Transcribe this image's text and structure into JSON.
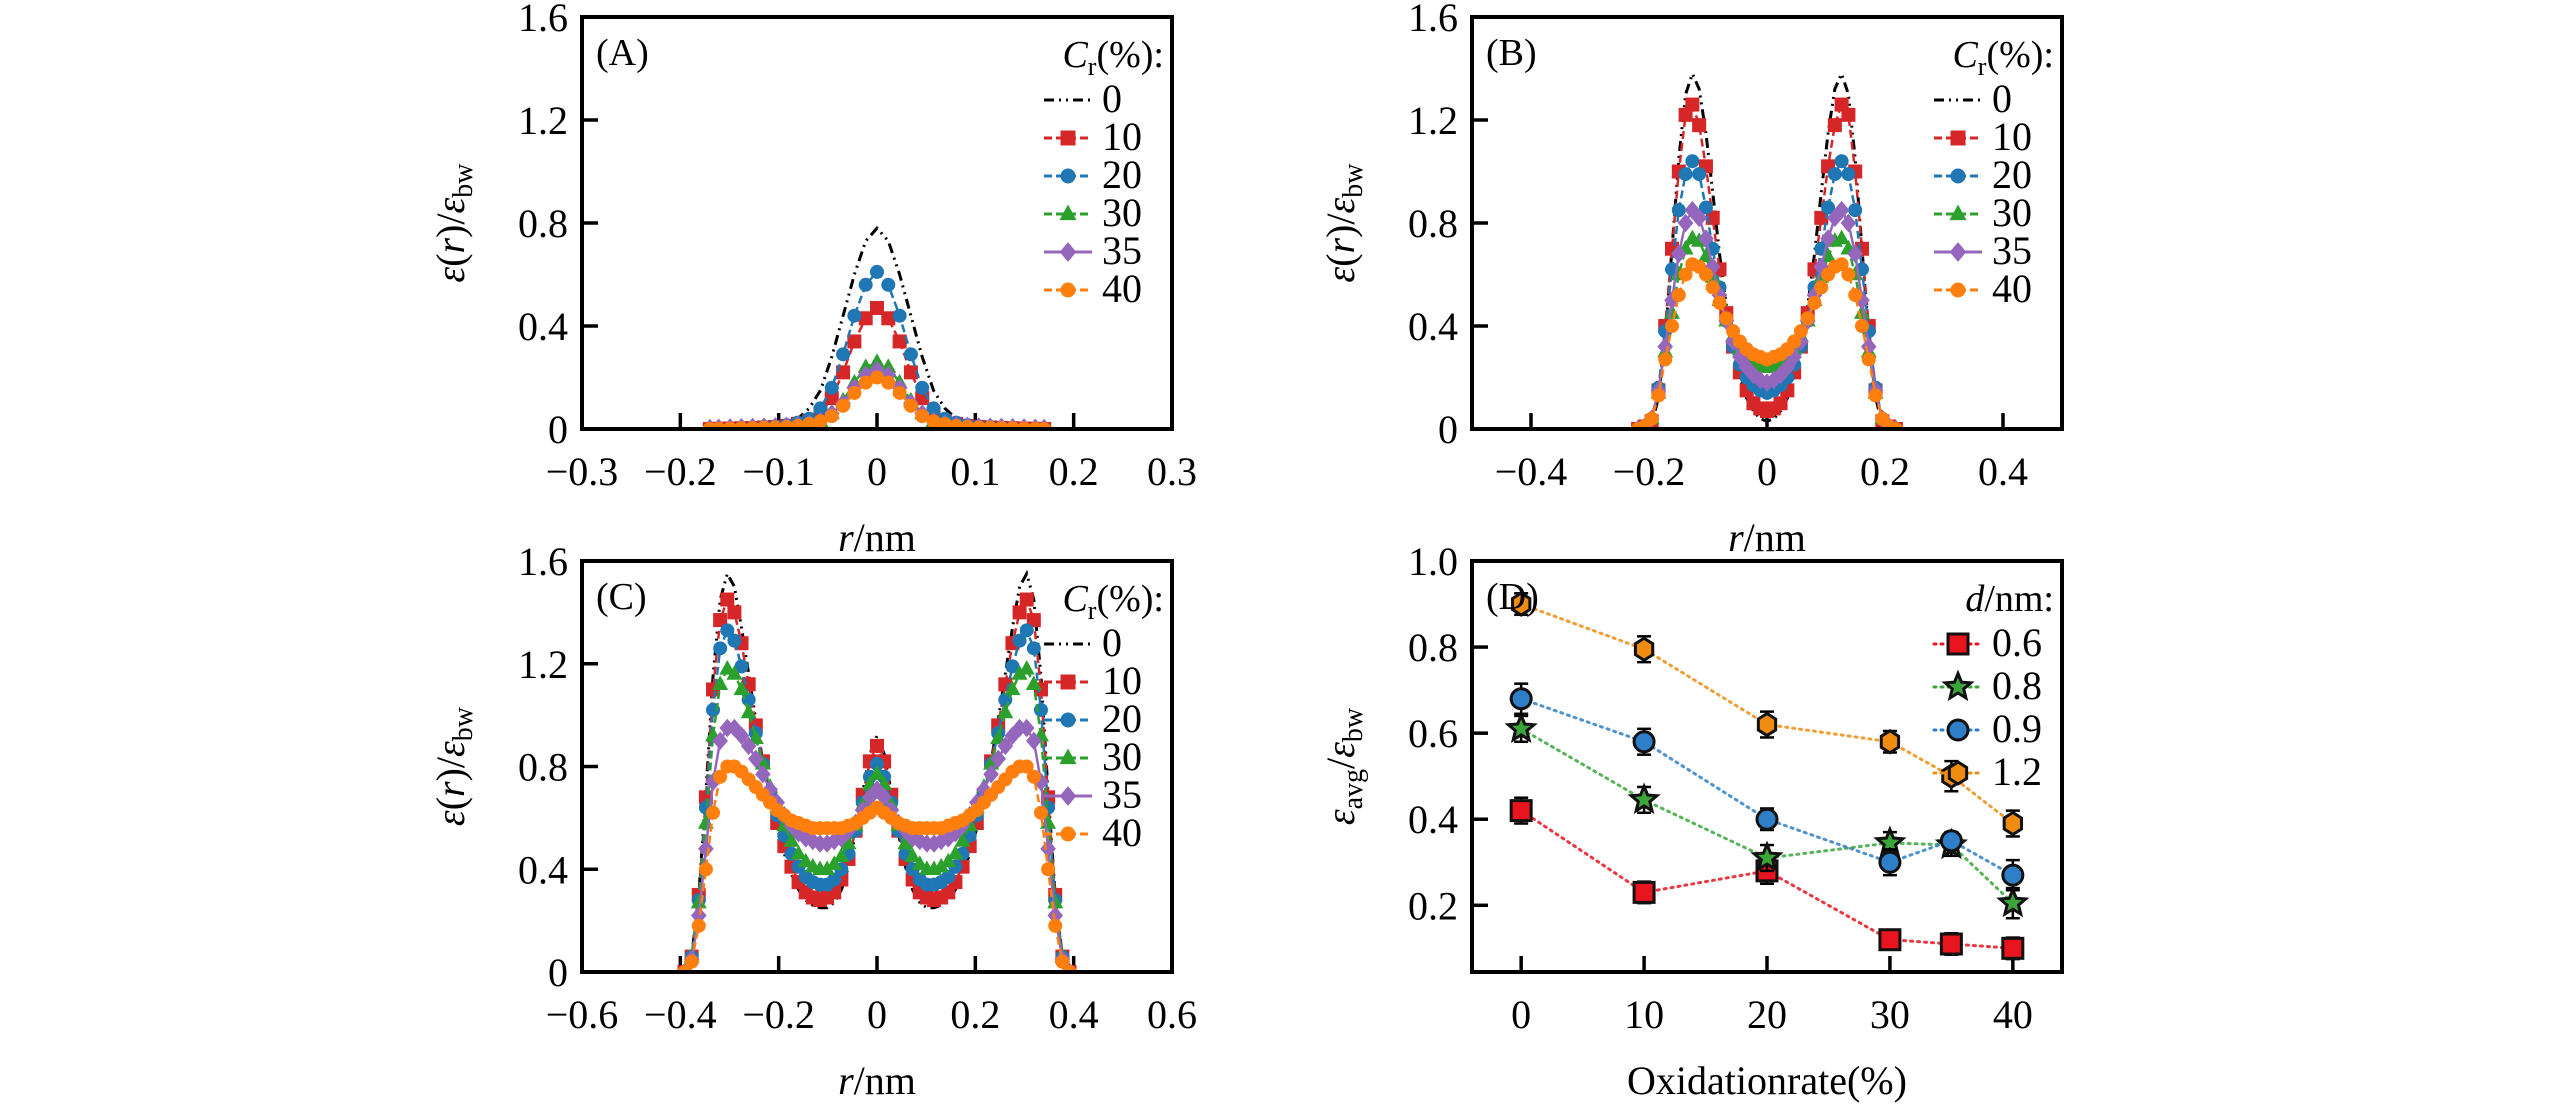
{
  "chart_data": [
    {
      "id": "A",
      "type": "line",
      "panel_label": "(A)",
      "xlabel": "r/nm",
      "ylabel": "ε(r)/ε_bw",
      "xlim": [
        -0.3,
        0.3
      ],
      "ylim": [
        0,
        1.6
      ],
      "xticks": [
        -0.3,
        -0.2,
        -0.1,
        0,
        0.1,
        0.2,
        0.3
      ],
      "xtick_labels": [
        "−0.3",
        "−0.2",
        "−0.1",
        "0",
        "0.1",
        "0.2",
        "0.3"
      ],
      "yticks": [
        0,
        0.4,
        0.8,
        1.2,
        1.6
      ],
      "ytick_labels": [
        "0",
        "0.4",
        "0.8",
        "1.2",
        "1.6"
      ],
      "legend_title": "Cr(%):",
      "legend_position": "top-right",
      "symmetric": true,
      "r_half": [
        0,
        0.0115,
        0.023,
        0.0345,
        0.046,
        0.0575,
        0.069,
        0.0805,
        0.092,
        0.1035,
        0.115,
        0.1265,
        0.138,
        0.1495,
        0.161,
        0.17
      ],
      "series": [
        {
          "name": "0",
          "color": "#000000",
          "marker": "none",
          "dash": "dashdotdot",
          "values": [
            0.78,
            0.73,
            0.6,
            0.44,
            0.28,
            0.15,
            0.08,
            0.04,
            0.02,
            0.012,
            0.008,
            0.005,
            0.003,
            0.002,
            0.001,
            0
          ]
        },
        {
          "name": "10",
          "color": "#d62728",
          "marker": "square",
          "dash": "dashed",
          "values": [
            0.47,
            0.43,
            0.34,
            0.22,
            0.12,
            0.06,
            0.03,
            0.02,
            0.012,
            0.008,
            0.006,
            0.004,
            0.003,
            0.002,
            0.001,
            0
          ]
        },
        {
          "name": "20",
          "color": "#1f77b4",
          "marker": "circle",
          "dash": "dashed",
          "values": [
            0.61,
            0.56,
            0.44,
            0.29,
            0.16,
            0.08,
            0.04,
            0.025,
            0.015,
            0.01,
            0.008,
            0.006,
            0.004,
            0.002,
            0.001,
            0
          ]
        },
        {
          "name": "30",
          "color": "#2ca02c",
          "marker": "triangle",
          "dash": "dashed",
          "values": [
            0.26,
            0.24,
            0.18,
            0.11,
            0.06,
            0.03,
            0.02,
            0.012,
            0.01,
            0.008,
            0.006,
            0.005,
            0.004,
            0.003,
            0.002,
            0.001
          ]
        },
        {
          "name": "35",
          "color": "#9467bd",
          "marker": "diamond",
          "dash": "solid",
          "values": [
            0.23,
            0.21,
            0.16,
            0.1,
            0.06,
            0.03,
            0.02,
            0.015,
            0.012,
            0.01,
            0.009,
            0.008,
            0.007,
            0.006,
            0.005,
            0.004
          ]
        },
        {
          "name": "40",
          "color": "#ff7f0e",
          "marker": "circle",
          "dash": "dashed",
          "values": [
            0.2,
            0.18,
            0.14,
            0.09,
            0.05,
            0.03,
            0.02,
            0.012,
            0.008,
            0.006,
            0.005,
            0.004,
            0.003,
            0.002,
            0.001,
            0
          ]
        }
      ]
    },
    {
      "id": "B",
      "type": "line",
      "panel_label": "(B)",
      "xlabel": "r/nm",
      "ylabel": "ε(r)/ε_bw",
      "xlim": [
        -0.5,
        0.5
      ],
      "ylim": [
        0,
        1.6
      ],
      "xticks": [
        -0.4,
        -0.2,
        0,
        0.2,
        0.4
      ],
      "xtick_labels": [
        "−0.4",
        "−0.2",
        "0",
        "0.2",
        "0.4"
      ],
      "yticks": [
        0,
        0.4,
        0.8,
        1.2,
        1.6
      ],
      "ytick_labels": [
        "0",
        "0.4",
        "0.8",
        "1.2",
        "1.6"
      ],
      "legend_title": "Cr(%):",
      "legend_position": "top-right",
      "symmetric": true,
      "r_half": [
        0,
        0.0115,
        0.023,
        0.0345,
        0.046,
        0.0575,
        0.069,
        0.0805,
        0.092,
        0.1035,
        0.115,
        0.1265,
        0.138,
        0.1495,
        0.161,
        0.1725,
        0.184,
        0.1955,
        0.207,
        0.2185
      ],
      "series": [
        {
          "name": "0",
          "color": "#000000",
          "marker": "none",
          "dash": "dashdotdot",
          "values": [
            0.03,
            0.04,
            0.07,
            0.12,
            0.2,
            0.32,
            0.48,
            0.68,
            0.92,
            1.15,
            1.32,
            1.38,
            1.3,
            1.05,
            0.7,
            0.36,
            0.12,
            0.02,
            0,
            0
          ]
        },
        {
          "name": "10",
          "color": "#d62728",
          "marker": "square",
          "dash": "dashed",
          "values": [
            0.07,
            0.08,
            0.1,
            0.15,
            0.22,
            0.32,
            0.45,
            0.62,
            0.82,
            1.02,
            1.18,
            1.26,
            1.22,
            1.0,
            0.7,
            0.4,
            0.15,
            0.03,
            0.01,
            0
          ]
        },
        {
          "name": "20",
          "color": "#1f77b4",
          "marker": "circle",
          "dash": "dashed",
          "values": [
            0.14,
            0.15,
            0.17,
            0.2,
            0.25,
            0.32,
            0.42,
            0.55,
            0.7,
            0.86,
            0.99,
            1.04,
            0.99,
            0.85,
            0.62,
            0.38,
            0.16,
            0.04,
            0.01,
            0
          ]
        },
        {
          "name": "30",
          "color": "#2ca02c",
          "marker": "triangle",
          "dash": "dashed",
          "values": [
            0.24,
            0.24,
            0.26,
            0.28,
            0.31,
            0.36,
            0.42,
            0.5,
            0.59,
            0.67,
            0.73,
            0.74,
            0.7,
            0.6,
            0.45,
            0.3,
            0.14,
            0.04,
            0.01,
            0
          ]
        },
        {
          "name": "35",
          "color": "#9467bd",
          "marker": "diamond",
          "dash": "solid",
          "values": [
            0.18,
            0.19,
            0.21,
            0.24,
            0.28,
            0.34,
            0.42,
            0.52,
            0.63,
            0.74,
            0.82,
            0.85,
            0.8,
            0.68,
            0.5,
            0.32,
            0.15,
            0.04,
            0.01,
            0
          ]
        },
        {
          "name": "40",
          "color": "#ff7f0e",
          "marker": "circle",
          "dash": "dashed",
          "values": [
            0.27,
            0.28,
            0.29,
            0.31,
            0.34,
            0.38,
            0.43,
            0.49,
            0.55,
            0.6,
            0.63,
            0.64,
            0.6,
            0.52,
            0.4,
            0.27,
            0.13,
            0.04,
            0.01,
            0
          ]
        }
      ]
    },
    {
      "id": "C",
      "type": "line",
      "panel_label": "(C)",
      "xlabel": "r/nm",
      "ylabel": "ε(r)/ε_bw",
      "xlim": [
        -0.6,
        0.6
      ],
      "ylim": [
        0,
        1.6
      ],
      "xticks": [
        -0.6,
        -0.4,
        -0.2,
        0,
        0.2,
        0.4,
        0.6
      ],
      "xtick_labels": [
        "−0.6",
        "−0.4",
        "−0.2",
        "0",
        "0.2",
        "0.4",
        "0.6"
      ],
      "yticks": [
        0,
        0.4,
        0.8,
        1.2,
        1.6
      ],
      "ytick_labels": [
        "0",
        "0.4",
        "0.8",
        "1.2",
        "1.6"
      ],
      "legend_title": "Cr(%):",
      "legend_position": "top-right",
      "symmetric": true,
      "r_half": [
        0,
        0.0145,
        0.029,
        0.0435,
        0.058,
        0.0725,
        0.087,
        0.1015,
        0.116,
        0.1305,
        0.145,
        0.1595,
        0.174,
        0.1885,
        0.203,
        0.2175,
        0.232,
        0.2465,
        0.261,
        0.2755,
        0.29,
        0.3045,
        0.319,
        0.3335,
        0.348,
        0.3625,
        0.377,
        0.3915
      ],
      "series": [
        {
          "name": "0",
          "color": "#000000",
          "marker": "none",
          "dash": "dashdotdot",
          "values": [
            0.92,
            0.85,
            0.7,
            0.54,
            0.41,
            0.32,
            0.27,
            0.25,
            0.25,
            0.26,
            0.28,
            0.32,
            0.38,
            0.46,
            0.56,
            0.68,
            0.82,
            0.98,
            1.16,
            1.34,
            1.5,
            1.55,
            1.45,
            1.15,
            0.7,
            0.3,
            0.06,
            0
          ]
        },
        {
          "name": "10",
          "color": "#d62728",
          "marker": "square",
          "dash": "dashed",
          "values": [
            0.88,
            0.82,
            0.69,
            0.55,
            0.44,
            0.36,
            0.31,
            0.29,
            0.28,
            0.29,
            0.31,
            0.35,
            0.41,
            0.49,
            0.58,
            0.69,
            0.82,
            0.96,
            1.12,
            1.28,
            1.4,
            1.45,
            1.37,
            1.1,
            0.68,
            0.3,
            0.06,
            0
          ]
        },
        {
          "name": "20",
          "color": "#1f77b4",
          "marker": "circle",
          "dash": "dashed",
          "values": [
            0.81,
            0.76,
            0.66,
            0.55,
            0.46,
            0.4,
            0.36,
            0.34,
            0.34,
            0.35,
            0.37,
            0.41,
            0.46,
            0.53,
            0.61,
            0.7,
            0.81,
            0.93,
            1.06,
            1.19,
            1.29,
            1.33,
            1.26,
            1.02,
            0.64,
            0.28,
            0.06,
            0
          ]
        },
        {
          "name": "30",
          "color": "#2ca02c",
          "marker": "triangle",
          "dash": "dashed",
          "values": [
            0.77,
            0.73,
            0.65,
            0.57,
            0.5,
            0.45,
            0.42,
            0.4,
            0.4,
            0.41,
            0.43,
            0.46,
            0.51,
            0.57,
            0.64,
            0.72,
            0.81,
            0.91,
            1.01,
            1.1,
            1.16,
            1.18,
            1.12,
            0.92,
            0.58,
            0.27,
            0.06,
            0
          ]
        },
        {
          "name": "35",
          "color": "#9467bd",
          "marker": "diamond",
          "dash": "solid",
          "values": [
            0.71,
            0.68,
            0.63,
            0.58,
            0.55,
            0.52,
            0.51,
            0.5,
            0.5,
            0.51,
            0.52,
            0.54,
            0.57,
            0.61,
            0.66,
            0.71,
            0.77,
            0.83,
            0.88,
            0.92,
            0.95,
            0.95,
            0.9,
            0.74,
            0.48,
            0.22,
            0.05,
            0
          ]
        },
        {
          "name": "40",
          "color": "#ff7f0e",
          "marker": "circle",
          "dash": "dashed",
          "values": [
            0.64,
            0.62,
            0.6,
            0.58,
            0.57,
            0.56,
            0.56,
            0.56,
            0.56,
            0.56,
            0.57,
            0.58,
            0.59,
            0.61,
            0.63,
            0.66,
            0.69,
            0.72,
            0.75,
            0.78,
            0.8,
            0.8,
            0.76,
            0.62,
            0.4,
            0.18,
            0.04,
            0
          ]
        }
      ]
    },
    {
      "id": "D",
      "type": "scatter",
      "panel_label": "(D)",
      "xlabel": "Oxidationrate(%)",
      "ylabel": "ε_avg/ε_bw",
      "xlim": [
        -4,
        44
      ],
      "ylim": [
        0.045,
        1.0
      ],
      "xticks": [
        0,
        10,
        20,
        30,
        40
      ],
      "xtick_labels": [
        "0",
        "10",
        "20",
        "30",
        "40"
      ],
      "yticks": [
        0.2,
        0.4,
        0.6,
        0.8,
        1.0
      ],
      "ytick_labels": [
        "0.2",
        "0.4",
        "0.6",
        "0.8",
        "1.0"
      ],
      "legend_title": "d/nm:",
      "legend_position": "top-right",
      "x": [
        0,
        10,
        20,
        30,
        35,
        40
      ],
      "series": [
        {
          "name": "0.6",
          "color": "#e8141e",
          "marker": "square",
          "values": [
            0.42,
            0.23,
            0.28,
            0.12,
            0.11,
            0.1
          ],
          "errors": [
            0.03,
            0.025,
            0.03,
            0.02,
            0.025,
            0.025
          ]
        },
        {
          "name": "0.8",
          "color": "#3aa63a",
          "marker": "star",
          "values": [
            0.61,
            0.445,
            0.31,
            0.345,
            0.34,
            0.205
          ],
          "errors": [
            0.03,
            0.03,
            0.03,
            0.025,
            0.025,
            0.035
          ]
        },
        {
          "name": "0.9",
          "color": "#2f7fc8",
          "marker": "circle",
          "values": [
            0.68,
            0.58,
            0.4,
            0.3,
            0.35,
            0.27
          ],
          "errors": [
            0.035,
            0.03,
            0.025,
            0.03,
            0.02,
            0.035
          ]
        },
        {
          "name": "1.2",
          "color": "#f08c10",
          "marker": "hexagon",
          "values": [
            0.9,
            0.795,
            0.62,
            0.58,
            0.5,
            0.39
          ],
          "errors": [
            0.025,
            0.03,
            0.03,
            0.025,
            0.035,
            0.03
          ]
        }
      ]
    }
  ]
}
